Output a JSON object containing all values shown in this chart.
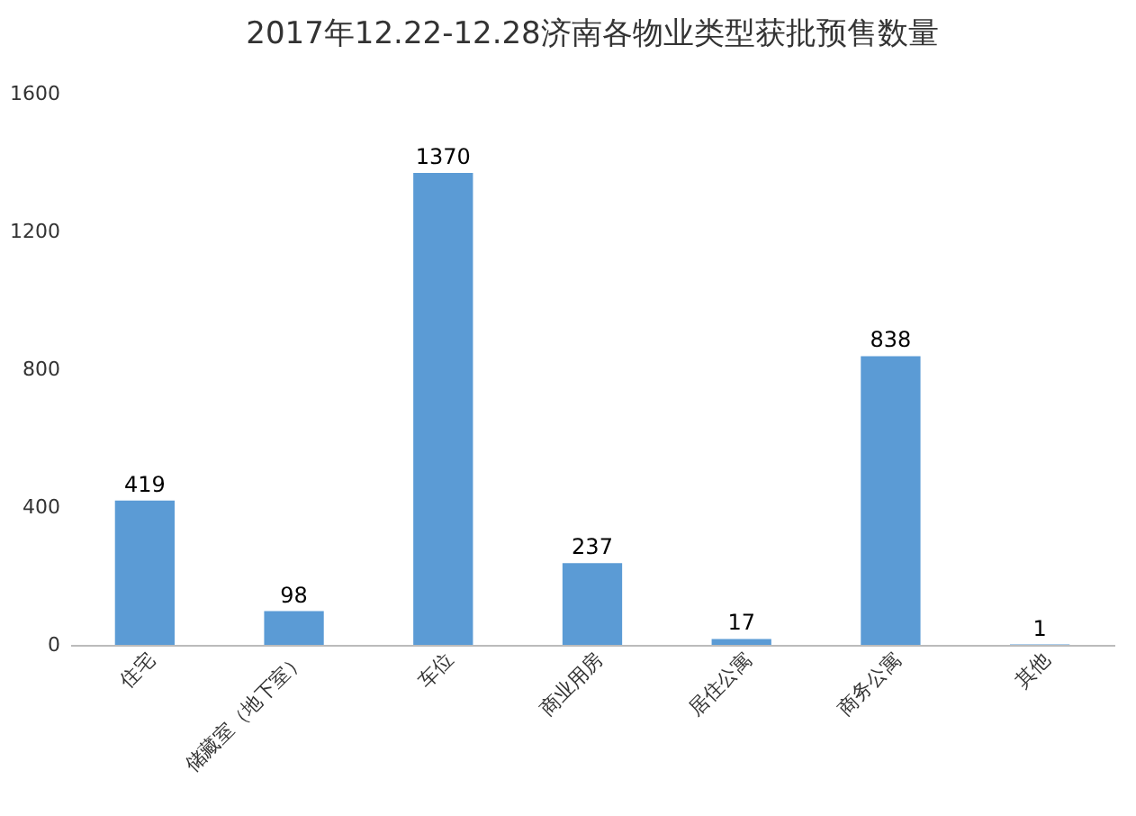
{
  "chart_data": {
    "type": "bar",
    "title": "2017年12.22-12.28济南各物业类型获批预售数量",
    "categories": [
      "住宅",
      "储藏室（地下室）",
      "车位",
      "商业用房",
      "居住公寓",
      "商务公寓",
      "其他"
    ],
    "values": [
      419,
      98,
      1370,
      237,
      17,
      838,
      1
    ],
    "color": "#5b9bd5",
    "ylim": [
      0,
      1600
    ],
    "yticks": [
      0,
      400,
      800,
      1200,
      1600
    ],
    "grid": false,
    "data_labels": true
  }
}
